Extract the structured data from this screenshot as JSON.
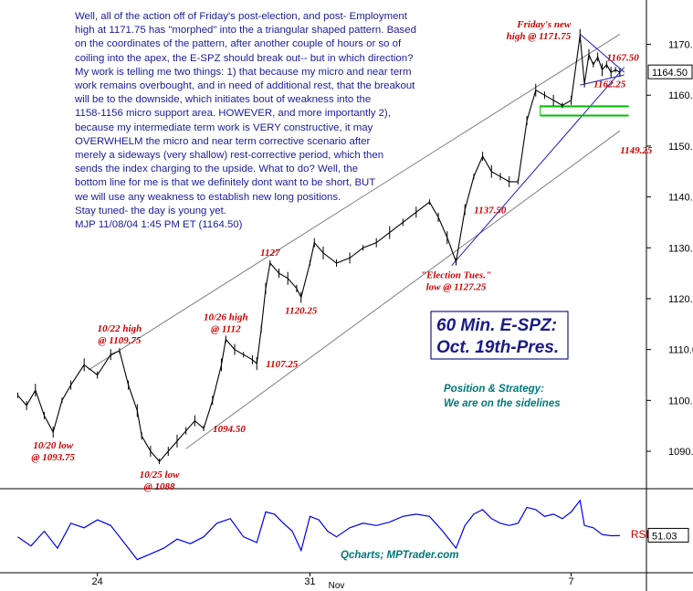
{
  "chart_data": {
    "type": "line",
    "title": "60 Min. E-SPZ:",
    "subtitle": "Oct. 19th-Pres.",
    "instrument": "E-SPZ",
    "timeframe": "60 Min.",
    "ylim": [
      1083,
      1178
    ],
    "y_ticks": [
      1090.0,
      1100.0,
      1110.0,
      1120.0,
      1130.0,
      1140.0,
      1150.0,
      1160.0,
      1170.0
    ],
    "x_ticks": [
      "24",
      "31",
      "7"
    ],
    "x_month_label": "Nov",
    "last_price": "1164.50",
    "price_series": [
      {
        "t": 0,
        "v": 1101
      },
      {
        "t": 2,
        "v": 1099
      },
      {
        "t": 4,
        "v": 1102
      },
      {
        "t": 6,
        "v": 1097
      },
      {
        "t": 8,
        "v": 1093.75
      },
      {
        "t": 10,
        "v": 1100
      },
      {
        "t": 12,
        "v": 1103
      },
      {
        "t": 15,
        "v": 1107
      },
      {
        "t": 18,
        "v": 1105
      },
      {
        "t": 21,
        "v": 1109
      },
      {
        "t": 23,
        "v": 1109.75
      },
      {
        "t": 25,
        "v": 1103
      },
      {
        "t": 27,
        "v": 1098
      },
      {
        "t": 28,
        "v": 1093
      },
      {
        "t": 30,
        "v": 1090
      },
      {
        "t": 32,
        "v": 1088
      },
      {
        "t": 34,
        "v": 1090
      },
      {
        "t": 36,
        "v": 1092
      },
      {
        "t": 38,
        "v": 1094
      },
      {
        "t": 40,
        "v": 1096
      },
      {
        "t": 42,
        "v": 1094.5
      },
      {
        "t": 44,
        "v": 1100
      },
      {
        "t": 46,
        "v": 1107
      },
      {
        "t": 47,
        "v": 1112
      },
      {
        "t": 49,
        "v": 1110
      },
      {
        "t": 51,
        "v": 1109
      },
      {
        "t": 53,
        "v": 1108
      },
      {
        "t": 54,
        "v": 1107.25
      },
      {
        "t": 55,
        "v": 1114
      },
      {
        "t": 56,
        "v": 1122
      },
      {
        "t": 57,
        "v": 1127
      },
      {
        "t": 59,
        "v": 1125
      },
      {
        "t": 61,
        "v": 1124
      },
      {
        "t": 63,
        "v": 1122
      },
      {
        "t": 64,
        "v": 1120.25
      },
      {
        "t": 66,
        "v": 1127
      },
      {
        "t": 67,
        "v": 1131
      },
      {
        "t": 69,
        "v": 1129
      },
      {
        "t": 72,
        "v": 1127
      },
      {
        "t": 75,
        "v": 1128
      },
      {
        "t": 78,
        "v": 1130
      },
      {
        "t": 81,
        "v": 1131
      },
      {
        "t": 84,
        "v": 1133
      },
      {
        "t": 87,
        "v": 1135
      },
      {
        "t": 90,
        "v": 1137
      },
      {
        "t": 93,
        "v": 1139
      },
      {
        "t": 95,
        "v": 1136
      },
      {
        "t": 97,
        "v": 1132
      },
      {
        "t": 99,
        "v": 1127.25
      },
      {
        "t": 101,
        "v": 1137.5
      },
      {
        "t": 103,
        "v": 1144
      },
      {
        "t": 105,
        "v": 1148
      },
      {
        "t": 107,
        "v": 1145
      },
      {
        "t": 109,
        "v": 1144
      },
      {
        "t": 111,
        "v": 1143
      },
      {
        "t": 113,
        "v": 1143
      },
      {
        "t": 115,
        "v": 1155
      },
      {
        "t": 117,
        "v": 1161
      },
      {
        "t": 119,
        "v": 1160
      },
      {
        "t": 121,
        "v": 1159
      },
      {
        "t": 123,
        "v": 1158
      },
      {
        "t": 125,
        "v": 1159
      },
      {
        "t": 127,
        "v": 1171.75
      },
      {
        "t": 128,
        "v": 1162.25
      },
      {
        "t": 129,
        "v": 1168
      },
      {
        "t": 130,
        "v": 1166
      },
      {
        "t": 131,
        "v": 1167.5
      },
      {
        "t": 132,
        "v": 1165
      },
      {
        "t": 133,
        "v": 1166
      },
      {
        "t": 134,
        "v": 1164.5
      },
      {
        "t": 135,
        "v": 1165
      },
      {
        "t": 136,
        "v": 1164.5
      }
    ],
    "rsi_series": [
      {
        "t": 0,
        "v": 50
      },
      {
        "t": 3,
        "v": 42
      },
      {
        "t": 6,
        "v": 55
      },
      {
        "t": 9,
        "v": 40
      },
      {
        "t": 12,
        "v": 62
      },
      {
        "t": 15,
        "v": 58
      },
      {
        "t": 18,
        "v": 65
      },
      {
        "t": 21,
        "v": 60
      },
      {
        "t": 24,
        "v": 45
      },
      {
        "t": 27,
        "v": 30
      },
      {
        "t": 30,
        "v": 35
      },
      {
        "t": 33,
        "v": 40
      },
      {
        "t": 36,
        "v": 48
      },
      {
        "t": 39,
        "v": 44
      },
      {
        "t": 42,
        "v": 50
      },
      {
        "t": 45,
        "v": 62
      },
      {
        "t": 48,
        "v": 66
      },
      {
        "t": 51,
        "v": 50
      },
      {
        "t": 54,
        "v": 45
      },
      {
        "t": 56,
        "v": 72
      },
      {
        "t": 58,
        "v": 70
      },
      {
        "t": 60,
        "v": 62
      },
      {
        "t": 62,
        "v": 55
      },
      {
        "t": 64,
        "v": 38
      },
      {
        "t": 66,
        "v": 68
      },
      {
        "t": 68,
        "v": 65
      },
      {
        "t": 70,
        "v": 55
      },
      {
        "t": 72,
        "v": 50
      },
      {
        "t": 75,
        "v": 58
      },
      {
        "t": 78,
        "v": 62
      },
      {
        "t": 81,
        "v": 60
      },
      {
        "t": 84,
        "v": 63
      },
      {
        "t": 87,
        "v": 68
      },
      {
        "t": 90,
        "v": 70
      },
      {
        "t": 93,
        "v": 68
      },
      {
        "t": 96,
        "v": 55
      },
      {
        "t": 99,
        "v": 40
      },
      {
        "t": 101,
        "v": 60
      },
      {
        "t": 103,
        "v": 70
      },
      {
        "t": 105,
        "v": 74
      },
      {
        "t": 107,
        "v": 66
      },
      {
        "t": 109,
        "v": 62
      },
      {
        "t": 111,
        "v": 60
      },
      {
        "t": 113,
        "v": 62
      },
      {
        "t": 115,
        "v": 76
      },
      {
        "t": 117,
        "v": 74
      },
      {
        "t": 119,
        "v": 68
      },
      {
        "t": 121,
        "v": 70
      },
      {
        "t": 123,
        "v": 66
      },
      {
        "t": 125,
        "v": 72
      },
      {
        "t": 127,
        "v": 82
      },
      {
        "t": 128,
        "v": 60
      },
      {
        "t": 130,
        "v": 58
      },
      {
        "t": 132,
        "v": 52
      },
      {
        "t": 134,
        "v": 51
      },
      {
        "t": 136,
        "v": 51.03
      }
    ],
    "rsi_label": "RSI",
    "rsi_value": "51.03",
    "channel_lines": [
      {
        "name": "upper-channel",
        "points": [
          {
            "t": 16,
            "v": 1106
          },
          {
            "t": 136,
            "v": 1172
          }
        ]
      },
      {
        "name": "lower-channel",
        "points": [
          {
            "t": 38,
            "v": 1090.5
          },
          {
            "t": 136,
            "v": 1153
          }
        ]
      },
      {
        "name": "rising-support",
        "points": [
          {
            "t": 98,
            "v": 1126.5
          },
          {
            "t": 137,
            "v": 1165.5
          }
        ]
      },
      {
        "name": "triangle-upper",
        "points": [
          {
            "t": 127,
            "v": 1172
          },
          {
            "t": 137,
            "v": 1164.5
          }
        ]
      },
      {
        "name": "triangle-lower",
        "points": [
          {
            "t": 127,
            "v": 1162
          },
          {
            "t": 137,
            "v": 1164
          }
        ]
      }
    ],
    "support_zone": {
      "label": "1158-1156",
      "top": 1158,
      "bottom": 1156,
      "t_from": 118,
      "t_to": 138
    },
    "annotations": [
      {
        "label": "10/20 low\n@ 1093.75",
        "t": 8,
        "v": 1093.75,
        "side": "below"
      },
      {
        "label": "10/22 high\n@ 1109.75",
        "t": 23,
        "v": 1109.75,
        "side": "above"
      },
      {
        "label": "10/25 low\n@ 1088",
        "t": 32,
        "v": 1088,
        "side": "below"
      },
      {
        "label": "1094.50",
        "t": 42,
        "v": 1094.5,
        "side": "right"
      },
      {
        "label": "10/26 high\n@ 1112",
        "t": 47,
        "v": 1112,
        "side": "above"
      },
      {
        "label": "1107.25",
        "t": 54,
        "v": 1107.25,
        "side": "right"
      },
      {
        "label": "1127",
        "t": 57,
        "v": 1127,
        "side": "above"
      },
      {
        "label": "1120.25",
        "t": 64,
        "v": 1120.25,
        "side": "below"
      },
      {
        "label": "\"Election Tues.\"\nlow @ 1127.25",
        "t": 99,
        "v": 1127.25,
        "side": "below"
      },
      {
        "label": "1137.50",
        "t": 101,
        "v": 1137.5,
        "side": "right"
      },
      {
        "label": "Friday's new\nhigh @ 1171.75",
        "t": 127,
        "v": 1171.75,
        "side": "left"
      },
      {
        "label": "1167.50",
        "t": 131,
        "v": 1167.5,
        "side": "right"
      },
      {
        "label": "1162.25",
        "t": 128,
        "v": 1162.25,
        "side": "right"
      },
      {
        "label": "1149.25",
        "t": 134,
        "v": 1149.25,
        "side": "right"
      }
    ]
  },
  "commentary": {
    "lines": [
      "Well, all of the action off of Friday's post-election, and post- Employment",
      "high at 1171.75 has \"morphed\" into the a triangular shaped pattern. Based",
      "on the coordinates of the pattern, after another couple of hours or so of",
      "coiling into the apex, the E-SPZ should break out-- but in which direction?",
      "My work is telling me two things: 1) that because my micro and near term",
      "work remains overbought, and in need of additional rest, that the breakout",
      "will be to the downside, which initiates bout of weakness into the",
      "1158-1156 micro support area. HOWEVER, and more importantly 2),",
      "because my intermediate term work is VERY constructive, it may",
      "OVERWHELM the micro and near term corrective scenario after",
      "merely a sideways (very shallow) rest-corrective period, which then",
      "sends the index charging to the upside. What to do? Well, the",
      "bottom line for me is that we definitely dont want to be short, BUT",
      "we will use any weakness to establish new long positions.",
      "Stay tuned- the day is young yet.",
      "MJP 11/08/04 1:45 PM ET (1164.50)"
    ]
  },
  "position_strategy": {
    "title": "Position & Strategy:",
    "text": "We are on the sidelines"
  },
  "credit": "Qcharts; MPTrader.com",
  "colors": {
    "price": "#000000",
    "rsi": "#0000ee",
    "channel": "#808080",
    "trend": "#2020cc",
    "support_fill": "#00c000",
    "annotation": "#cc0000",
    "title": "#1a1a8c",
    "strategy": "#007878",
    "credit": "#007878",
    "commentary": "#1b1b9c"
  }
}
